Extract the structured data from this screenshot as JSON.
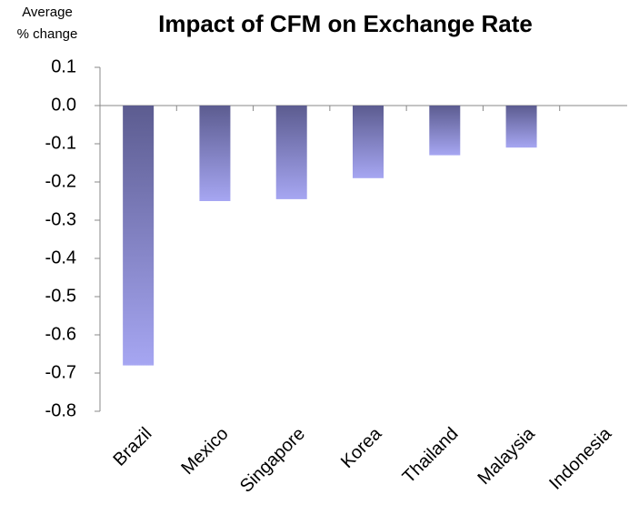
{
  "chart_data": {
    "type": "bar",
    "title": "Impact of CFM on Exchange Rate",
    "y_label": [
      "Average",
      "% change"
    ],
    "categories": [
      "Brazil",
      "Mexico",
      "Singapore",
      "Korea",
      "Thailand",
      "Malaysia",
      "Indonesia"
    ],
    "values": [
      -0.68,
      -0.25,
      -0.245,
      -0.19,
      -0.13,
      -0.11,
      0
    ],
    "color": [
      "#5c5c90",
      "#a6a6f2"
    ],
    "ylim": [
      -0.8,
      0.1
    ],
    "yticks": [
      0.1,
      {
        "value": 0,
        "label": "0.0"
      },
      -0.1,
      -0.2,
      -0.3,
      -0.4,
      -0.5,
      -0.6,
      -0.7,
      -0.8
    ]
  }
}
